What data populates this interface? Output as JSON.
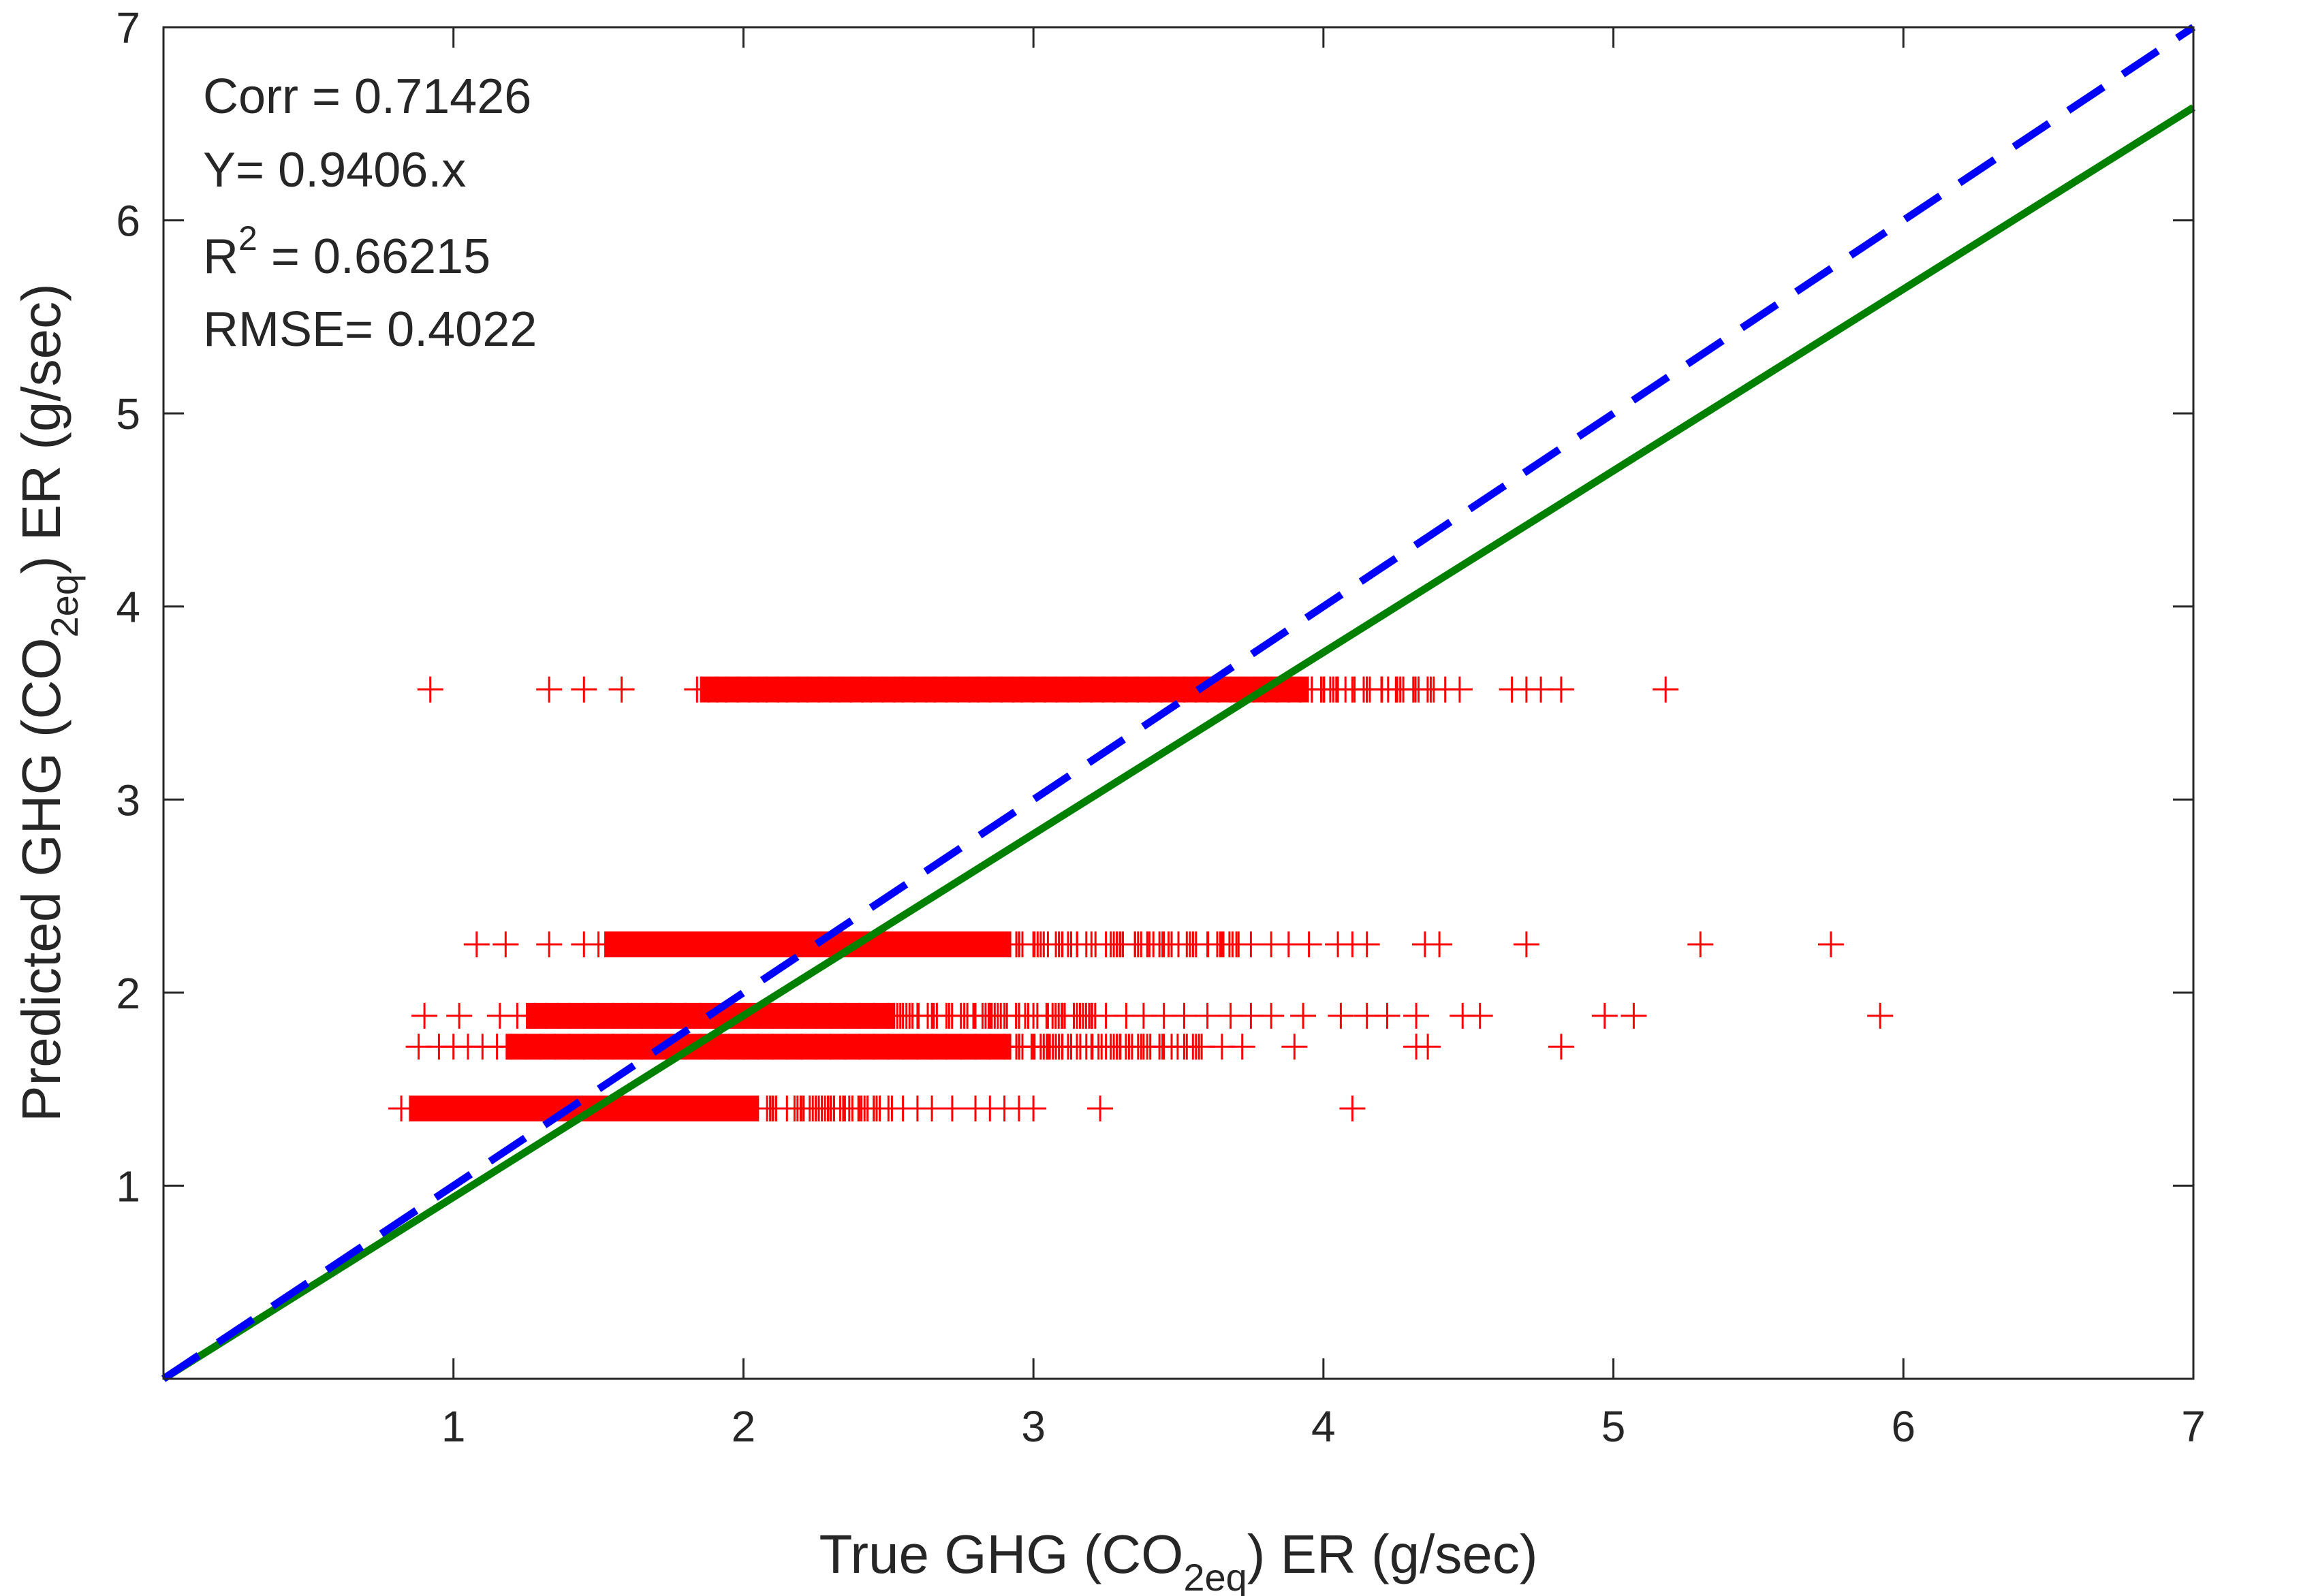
{
  "chart_data": {
    "type": "scatter",
    "title": "",
    "xlabel": {
      "prefix": "True GHG (CO",
      "subscript": "2eq",
      "suffix": ") ER (g/sec)"
    },
    "ylabel": {
      "prefix": "Predicted GHG (CO",
      "subscript": "2eq",
      "suffix": ") ER (g/sec)"
    },
    "xlim": [
      0,
      7
    ],
    "ylim": [
      0,
      7
    ],
    "xticks": [
      1,
      2,
      3,
      4,
      5,
      6,
      7
    ],
    "yticks": [
      1,
      2,
      3,
      4,
      5,
      6,
      7
    ],
    "xtick_labels": [
      "1",
      "2",
      "3",
      "4",
      "5",
      "6",
      "7"
    ],
    "ytick_labels": [
      "1",
      "2",
      "3",
      "4",
      "5",
      "6",
      "7"
    ],
    "grid": false,
    "annotations": {
      "corr": "Corr = 0.71426",
      "equation": "Y= 0.9406.x",
      "r2_prefix": "R",
      "r2_exponent": "2",
      "r2_suffix": " = 0.66215",
      "rmse": "RMSE= 0.4022"
    },
    "colors": {
      "scatter": "#ff0000",
      "fit": "#008000",
      "identity": "#0000ff",
      "axes": "#262626"
    },
    "lines": [
      {
        "name": "fit",
        "style": "solid",
        "x": [
          0,
          7
        ],
        "y": [
          0,
          6.5842
        ]
      },
      {
        "name": "identity",
        "style": "dashed",
        "x": [
          0,
          7
        ],
        "y": [
          0,
          7
        ]
      }
    ],
    "series": [
      {
        "name": "predicted-vs-true",
        "marker": "+",
        "bands": [
          {
            "y": 3.57,
            "dense_from": 1.85,
            "dense_to": 3.95,
            "sparse_to": 4.42,
            "x": [
              0.92,
              1.33,
              1.45,
              1.58,
              1.84,
              1.88,
              1.91,
              1.94,
              1.98,
              2.02,
              2.05,
              2.08,
              2.12,
              2.15,
              2.19,
              2.22,
              2.26,
              2.3,
              2.33,
              2.37,
              2.41,
              2.44,
              2.48,
              2.52,
              2.55,
              2.59,
              2.63,
              2.66,
              2.7,
              2.74,
              2.78,
              2.81,
              2.85,
              2.89,
              2.93,
              2.96,
              3.0,
              3.04,
              3.08,
              3.12,
              3.16,
              3.2,
              3.24,
              3.28,
              3.32,
              3.36,
              3.4,
              3.44,
              3.48,
              3.52,
              3.56,
              3.6,
              3.64,
              3.68,
              3.72,
              3.76,
              3.8,
              3.84,
              3.88,
              3.92,
              3.96,
              4.0,
              4.05,
              4.1,
              4.15,
              4.2,
              4.25,
              4.31,
              4.37,
              4.42,
              4.47,
              4.65,
              4.7,
              4.75,
              4.82,
              5.18
            ]
          },
          {
            "y": 2.25,
            "dense_from": 1.52,
            "dense_to": 2.92,
            "sparse_to": 3.72,
            "x": [
              1.08,
              1.18,
              1.33,
              1.45,
              1.5,
              1.55,
              1.6,
              1.65,
              1.7,
              1.75,
              1.8,
              1.85,
              1.9,
              1.95,
              2.0,
              2.05,
              2.1,
              2.15,
              2.2,
              2.25,
              2.3,
              2.35,
              2.4,
              2.45,
              2.5,
              2.55,
              2.6,
              2.65,
              2.7,
              2.75,
              2.8,
              2.85,
              2.9,
              2.95,
              3.0,
              3.05,
              3.1,
              3.15,
              3.2,
              3.25,
              3.3,
              3.35,
              3.4,
              3.45,
              3.5,
              3.55,
              3.6,
              3.65,
              3.7,
              3.75,
              3.82,
              3.88,
              3.95,
              4.05,
              4.1,
              4.15,
              4.35,
              4.4,
              4.7,
              5.3,
              5.75
            ]
          },
          {
            "y": 1.88,
            "dense_from": 1.25,
            "dense_to": 2.52,
            "sparse_to": 3.22,
            "x": [
              0.9,
              1.02,
              1.16,
              1.22,
              1.28,
              1.32,
              1.36,
              1.4,
              1.45,
              1.5,
              1.55,
              1.6,
              1.65,
              1.7,
              1.75,
              1.8,
              1.85,
              1.9,
              1.95,
              2.0,
              2.05,
              2.1,
              2.15,
              2.2,
              2.25,
              2.3,
              2.35,
              2.4,
              2.45,
              2.5,
              2.55,
              2.6,
              2.65,
              2.7,
              2.75,
              2.8,
              2.85,
              2.9,
              2.95,
              3.0,
              3.05,
              3.1,
              3.15,
              3.2,
              3.25,
              3.32,
              3.38,
              3.45,
              3.52,
              3.6,
              3.68,
              3.75,
              3.82,
              3.93,
              4.06,
              4.15,
              4.22,
              4.32,
              4.48,
              4.54,
              4.97,
              5.07,
              5.92
            ]
          },
          {
            "y": 1.72,
            "dense_from": 1.18,
            "dense_to": 2.92,
            "sparse_to": 3.58,
            "x": [
              0.88,
              0.95,
              1.0,
              1.05,
              1.1,
              1.15,
              1.2,
              1.25,
              1.3,
              1.35,
              1.4,
              1.45,
              1.5,
              1.55,
              1.6,
              1.65,
              1.7,
              1.75,
              1.8,
              1.85,
              1.9,
              1.95,
              2.0,
              2.05,
              2.1,
              2.15,
              2.2,
              2.25,
              2.3,
              2.35,
              2.4,
              2.45,
              2.5,
              2.55,
              2.6,
              2.65,
              2.7,
              2.75,
              2.8,
              2.85,
              2.9,
              2.95,
              3.0,
              3.05,
              3.1,
              3.15,
              3.2,
              3.25,
              3.3,
              3.38,
              3.45,
              3.52,
              3.58,
              3.65,
              3.72,
              3.9,
              4.32,
              4.36,
              4.82
            ]
          },
          {
            "y": 1.4,
            "dense_from": 0.85,
            "dense_to": 2.05,
            "sparse_to": 2.52,
            "x": [
              0.82,
              0.85,
              0.9,
              0.95,
              1.0,
              1.05,
              1.1,
              1.15,
              1.2,
              1.25,
              1.3,
              1.35,
              1.4,
              1.45,
              1.5,
              1.55,
              1.6,
              1.65,
              1.7,
              1.75,
              1.8,
              1.85,
              1.9,
              1.95,
              2.0,
              2.05,
              2.1,
              2.15,
              2.2,
              2.25,
              2.3,
              2.35,
              2.4,
              2.45,
              2.5,
              2.55,
              2.6,
              2.65,
              2.72,
              2.8,
              2.85,
              2.9,
              2.95,
              3.0,
              3.23,
              4.1
            ]
          }
        ]
      }
    ]
  }
}
